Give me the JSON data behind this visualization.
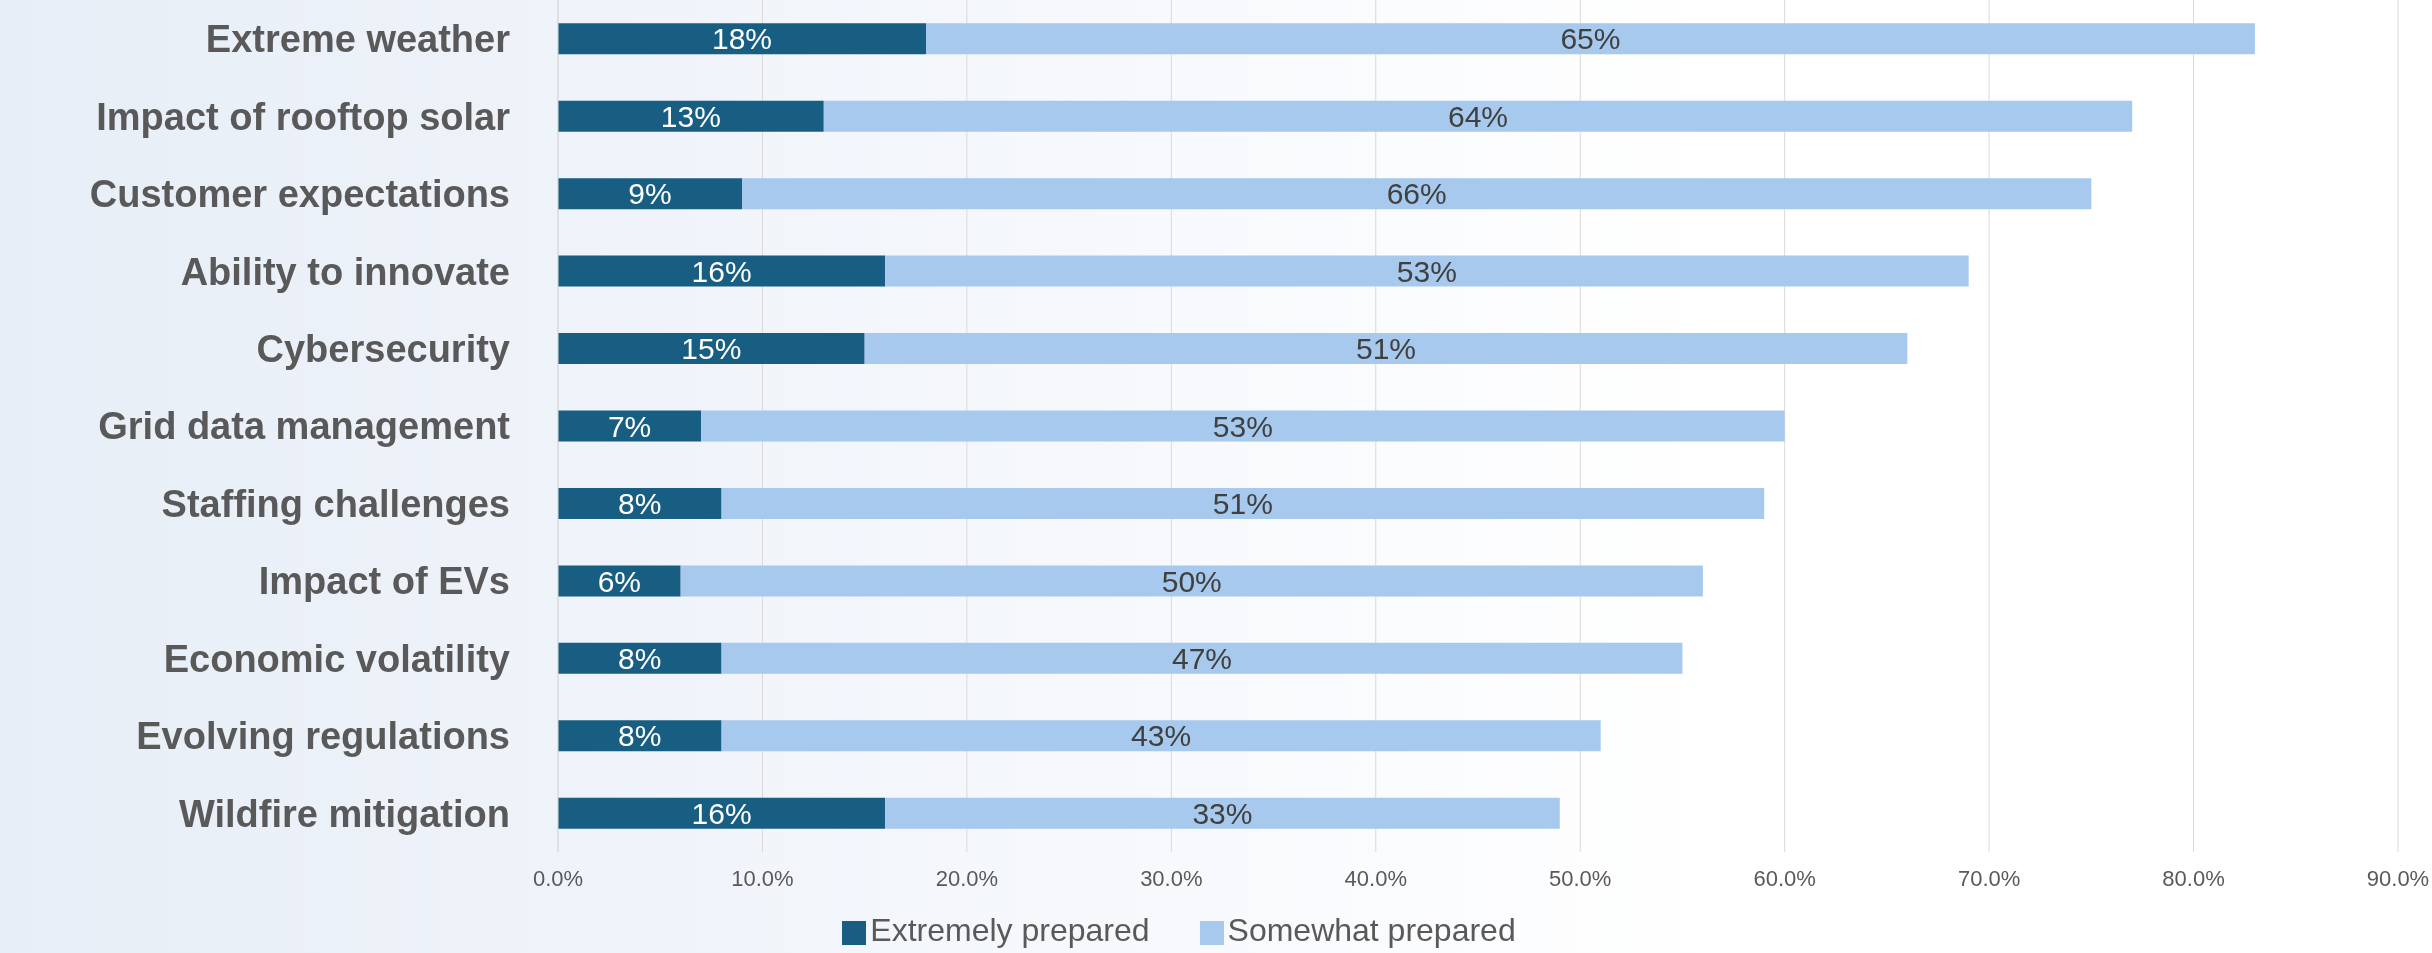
{
  "chart_data": {
    "type": "bar",
    "orientation": "horizontal",
    "stacked": true,
    "categories": [
      "Extreme weather",
      "Impact of rooftop solar",
      "Customer expectations",
      "Ability to innovate",
      "Cybersecurity",
      "Grid data management",
      "Staffing challenges",
      "Impact of EVs",
      "Economic volatility",
      "Evolving regulations",
      "Wildfire mitigation"
    ],
    "series": [
      {
        "name": "Extremely prepared",
        "color": "#175e82",
        "values": [
          18,
          13,
          9,
          16,
          15,
          7,
          8,
          6,
          8,
          8,
          16
        ],
        "value_labels": [
          "18%",
          "13%",
          "9%",
          "16%",
          "15%",
          "7%",
          "8%",
          "6%",
          "8%",
          "8%",
          "16%"
        ]
      },
      {
        "name": "Somewhat prepared",
        "color": "#a6c9ed",
        "values": [
          65,
          64,
          66,
          53,
          51,
          53,
          51,
          50,
          47,
          43,
          33
        ],
        "value_labels": [
          "65%",
          "64%",
          "66%",
          "53%",
          "51%",
          "53%",
          "51%",
          "50%",
          "47%",
          "43%",
          "33%"
        ]
      }
    ],
    "xlim": [
      0,
      90
    ],
    "xticks": [
      {
        "value": 0,
        "label": "0.0%"
      },
      {
        "value": 10,
        "label": "10.0%"
      },
      {
        "value": 20,
        "label": "20.0%"
      },
      {
        "value": 30,
        "label": "30.0%"
      },
      {
        "value": 40,
        "label": "40.0%"
      },
      {
        "value": 50,
        "label": "50.0%"
      },
      {
        "value": 60,
        "label": "60.0%"
      },
      {
        "value": 70,
        "label": "70.0%"
      },
      {
        "value": 80,
        "label": "80.0%"
      },
      {
        "value": 90,
        "label": "90.0%"
      }
    ],
    "grid": "x",
    "legend": "bottom"
  }
}
